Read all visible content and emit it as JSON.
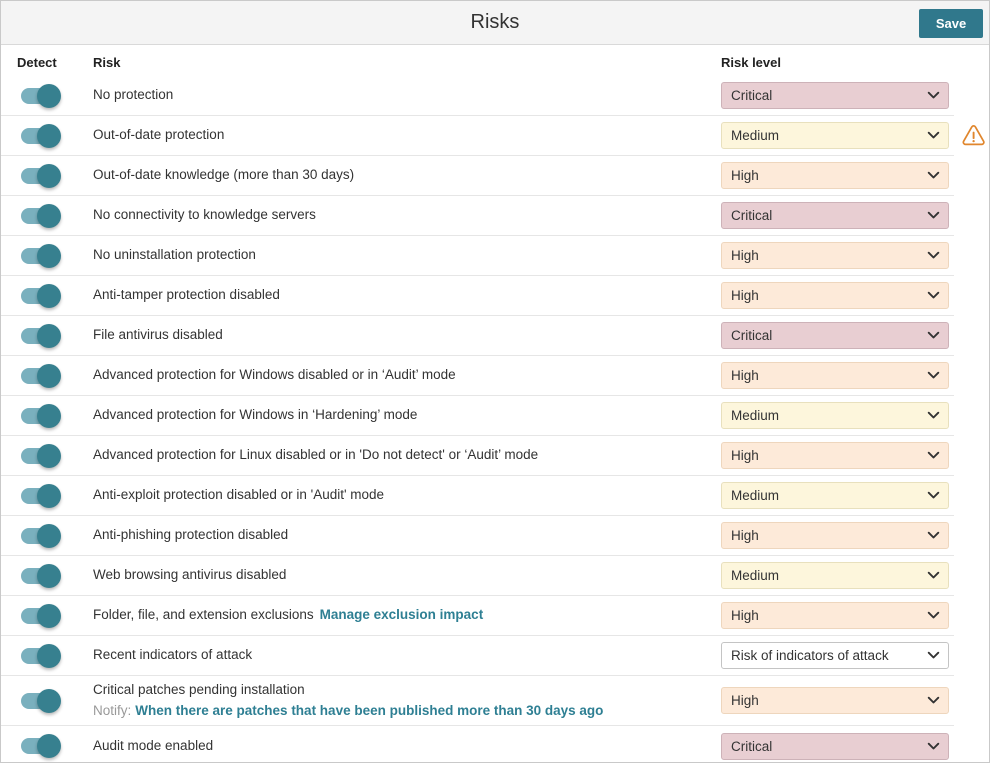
{
  "header": {
    "title": "Risks",
    "save_label": "Save"
  },
  "columns": {
    "detect": "Detect",
    "risk": "Risk",
    "risk_level": "Risk level"
  },
  "colors": {
    "accent_teal": "#30788c",
    "toggle_track": "#7ab0be",
    "toggle_knob": "#37808f",
    "link_teal": "#2e7f93",
    "critical_bg": "#e8ced2",
    "high_bg": "#fdead9",
    "medium_bg": "#fdf6dc",
    "warning_orange": "#e0862d"
  },
  "rows": [
    {
      "risk": "No protection",
      "detect": true,
      "level": "Critical",
      "severity": "critical"
    },
    {
      "risk": "Out-of-date protection",
      "detect": true,
      "level": "Medium",
      "severity": "medium",
      "warning": true
    },
    {
      "risk": "Out-of-date knowledge (more than 30 days)",
      "detect": true,
      "level": "High",
      "severity": "high"
    },
    {
      "risk": "No connectivity to knowledge servers",
      "detect": true,
      "level": "Critical",
      "severity": "critical"
    },
    {
      "risk": "No uninstallation protection",
      "detect": true,
      "level": "High",
      "severity": "high"
    },
    {
      "risk": "Anti-tamper protection disabled",
      "detect": true,
      "level": "High",
      "severity": "high"
    },
    {
      "risk": "File antivirus disabled",
      "detect": true,
      "level": "Critical",
      "severity": "critical"
    },
    {
      "risk": "Advanced protection for Windows disabled or in ‘Audit’ mode",
      "detect": true,
      "level": "High",
      "severity": "high"
    },
    {
      "risk": "Advanced protection for Windows in ‘Hardening’ mode",
      "detect": true,
      "level": "Medium",
      "severity": "medium"
    },
    {
      "risk": "Advanced protection for Linux disabled or in 'Do not detect' or ‘Audit’ mode",
      "detect": true,
      "level": "High",
      "severity": "high"
    },
    {
      "risk": "Anti-exploit protection disabled or in 'Audit' mode",
      "detect": true,
      "level": "Medium",
      "severity": "medium"
    },
    {
      "risk": "Anti-phishing protection disabled",
      "detect": true,
      "level": "High",
      "severity": "high"
    },
    {
      "risk": "Web browsing antivirus disabled",
      "detect": true,
      "level": "Medium",
      "severity": "medium"
    },
    {
      "risk": "Folder, file, and extension exclusions",
      "link": "Manage exclusion impact",
      "detect": true,
      "level": "High",
      "severity": "high"
    },
    {
      "risk": "Recent indicators of attack",
      "detect": true,
      "level": "Risk of indicators of attack",
      "severity": "none"
    },
    {
      "risk": "Critical patches pending installation",
      "detect": true,
      "notify_label": "Notify:",
      "notify_link": "When there are patches that have been published more than 30 days ago",
      "level": "High",
      "severity": "high"
    },
    {
      "risk": "Audit mode enabled",
      "detect": true,
      "level": "Critical",
      "severity": "critical"
    }
  ]
}
